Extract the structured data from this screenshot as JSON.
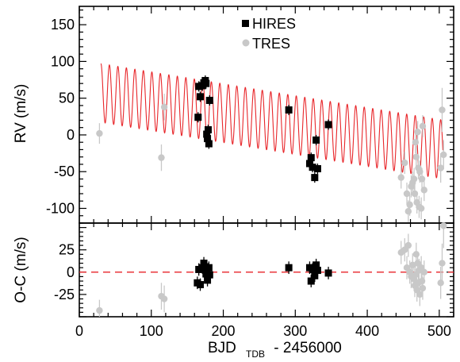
{
  "chart_data": [
    {
      "panel": "top",
      "type": "scatter",
      "ylabel": "RV (m/s)",
      "xlim": [
        0,
        520
      ],
      "ylim": [
        -120,
        175
      ],
      "yticks": [
        "150",
        "100",
        "50",
        "0",
        "-50",
        "-100"
      ],
      "yticks_values": [
        150,
        100,
        50,
        0,
        -50,
        -100
      ],
      "legend": {
        "position": "top-center",
        "entries": [
          "HIRES",
          "TRES"
        ]
      },
      "colors": {
        "hires": "#000000",
        "tres": "#c8c8c8",
        "model": "#e8262a"
      },
      "model": {
        "type": "sine-plus-trend",
        "period_days": 11.8,
        "amplitude": 40,
        "intercept": 62,
        "slope": -0.162,
        "x_range": [
          30,
          505
        ]
      },
      "series": [
        {
          "name": "HIRES",
          "marker": "square",
          "points": [
            {
              "x": 165,
              "y": 24,
              "err": 7
            },
            {
              "x": 166,
              "y": 66,
              "err": 7
            },
            {
              "x": 168,
              "y": 52,
              "err": 7
            },
            {
              "x": 171,
              "y": 67,
              "err": 7
            },
            {
              "x": 173,
              "y": 71,
              "err": 7
            },
            {
              "x": 175,
              "y": 74,
              "err": 7
            },
            {
              "x": 176,
              "y": 70,
              "err": 7
            },
            {
              "x": 177,
              "y": 1,
              "err": 7
            },
            {
              "x": 178,
              "y": -5,
              "err": 7
            },
            {
              "x": 179,
              "y": 7,
              "err": 7
            },
            {
              "x": 180,
              "y": -12,
              "err": 7
            },
            {
              "x": 181,
              "y": 47,
              "err": 7
            },
            {
              "x": 291,
              "y": 34,
              "err": 7
            },
            {
              "x": 320,
              "y": -39,
              "err": 7
            },
            {
              "x": 322,
              "y": -31,
              "err": 7
            },
            {
              "x": 324,
              "y": -44,
              "err": 7
            },
            {
              "x": 327,
              "y": -58,
              "err": 7
            },
            {
              "x": 329,
              "y": -7,
              "err": 7
            },
            {
              "x": 331,
              "y": -46,
              "err": 7
            },
            {
              "x": 346,
              "y": 14,
              "err": 7
            }
          ]
        },
        {
          "name": "TRES",
          "marker": "circle",
          "points": [
            {
              "x": 28,
              "y": 2,
              "err": 14
            },
            {
              "x": 114,
              "y": -31,
              "err": 18
            },
            {
              "x": 118,
              "y": 38,
              "err": 18
            },
            {
              "x": 447,
              "y": -58,
              "err": 15
            },
            {
              "x": 452,
              "y": -38,
              "err": 15
            },
            {
              "x": 455,
              "y": -80,
              "err": 15
            },
            {
              "x": 457,
              "y": -104,
              "err": 15
            },
            {
              "x": 459,
              "y": -95,
              "err": 15
            },
            {
              "x": 461,
              "y": -70,
              "err": 15
            },
            {
              "x": 463,
              "y": -65,
              "err": 15
            },
            {
              "x": 465,
              "y": -60,
              "err": 15
            },
            {
              "x": 466,
              "y": -80,
              "err": 15
            },
            {
              "x": 467,
              "y": -10,
              "err": 15
            },
            {
              "x": 468,
              "y": -30,
              "err": 15
            },
            {
              "x": 469,
              "y": -92,
              "err": 15
            },
            {
              "x": 470,
              "y": 4,
              "err": 15
            },
            {
              "x": 471,
              "y": -45,
              "err": 15
            },
            {
              "x": 472,
              "y": -98,
              "err": 15
            },
            {
              "x": 473,
              "y": -50,
              "err": 15
            },
            {
              "x": 475,
              "y": -100,
              "err": 15
            },
            {
              "x": 476,
              "y": -60,
              "err": 15
            },
            {
              "x": 477,
              "y": 12,
              "err": 15
            },
            {
              "x": 479,
              "y": -75,
              "err": 15
            },
            {
              "x": 502,
              "y": -45,
              "err": 20
            },
            {
              "x": 504,
              "y": 34,
              "err": 30
            },
            {
              "x": 506,
              "y": -27,
              "err": 20
            }
          ]
        }
      ]
    },
    {
      "panel": "bottom",
      "type": "scatter",
      "ylabel": "O-C (m/s)",
      "xlabel_main": "BJD",
      "xlabel_sub": "TDB",
      "xlabel_suffix": " - 2456000",
      "xlim": [
        0,
        520
      ],
      "ylim": [
        -50,
        55
      ],
      "yticks": [
        "25",
        "0",
        "-25"
      ],
      "yticks_values": [
        25,
        0,
        -25
      ],
      "xticks": [
        "0",
        "100",
        "200",
        "300",
        "400",
        "500"
      ],
      "xticks_values": [
        0,
        100,
        200,
        300,
        400,
        500
      ],
      "zero_line": {
        "y": 0,
        "color": "#e8262a",
        "style": "dashed"
      },
      "series": [
        {
          "name": "HIRES",
          "marker": "square",
          "points": [
            {
              "x": 164,
              "y": -12,
              "err": 7
            },
            {
              "x": 166,
              "y": 3,
              "err": 7
            },
            {
              "x": 168,
              "y": -14,
              "err": 7
            },
            {
              "x": 171,
              "y": 5,
              "err": 7
            },
            {
              "x": 173,
              "y": 10,
              "err": 7
            },
            {
              "x": 175,
              "y": 6,
              "err": 7
            },
            {
              "x": 176,
              "y": -2,
              "err": 7
            },
            {
              "x": 177,
              "y": 3,
              "err": 7
            },
            {
              "x": 178,
              "y": -9,
              "err": 7
            },
            {
              "x": 180,
              "y": 5,
              "err": 7
            },
            {
              "x": 181,
              "y": -3,
              "err": 7
            },
            {
              "x": 291,
              "y": 5,
              "err": 7
            },
            {
              "x": 320,
              "y": 5,
              "err": 7
            },
            {
              "x": 322,
              "y": -10,
              "err": 7
            },
            {
              "x": 324,
              "y": 3,
              "err": 7
            },
            {
              "x": 327,
              "y": -4,
              "err": 7
            },
            {
              "x": 329,
              "y": 8,
              "err": 7
            },
            {
              "x": 331,
              "y": 2,
              "err": 7
            },
            {
              "x": 346,
              "y": -1,
              "err": 7
            }
          ]
        },
        {
          "name": "TRES",
          "marker": "circle",
          "points": [
            {
              "x": 28,
              "y": -43,
              "err": 12
            },
            {
              "x": 114,
              "y": -27,
              "err": 15
            },
            {
              "x": 118,
              "y": -30,
              "err": 15
            },
            {
              "x": 447,
              "y": 22,
              "err": 13
            },
            {
              "x": 452,
              "y": 25,
              "err": 13
            },
            {
              "x": 455,
              "y": 5,
              "err": 13
            },
            {
              "x": 457,
              "y": 30,
              "err": 13
            },
            {
              "x": 459,
              "y": 0,
              "err": 13
            },
            {
              "x": 461,
              "y": -5,
              "err": 13
            },
            {
              "x": 463,
              "y": 8,
              "err": 13
            },
            {
              "x": 465,
              "y": -8,
              "err": 13
            },
            {
              "x": 466,
              "y": -15,
              "err": 13
            },
            {
              "x": 467,
              "y": -3,
              "err": 13
            },
            {
              "x": 468,
              "y": 20,
              "err": 13
            },
            {
              "x": 469,
              "y": -20,
              "err": 13
            },
            {
              "x": 470,
              "y": 10,
              "err": 13
            },
            {
              "x": 471,
              "y": -12,
              "err": 13
            },
            {
              "x": 472,
              "y": 2,
              "err": 13
            },
            {
              "x": 473,
              "y": -25,
              "err": 13
            },
            {
              "x": 475,
              "y": 5,
              "err": 13
            },
            {
              "x": 476,
              "y": -10,
              "err": 13
            },
            {
              "x": 477,
              "y": -18,
              "err": 13
            },
            {
              "x": 479,
              "y": 0,
              "err": 13
            },
            {
              "x": 502,
              "y": -12,
              "err": 18
            },
            {
              "x": 504,
              "y": 10,
              "err": 22
            },
            {
              "x": 506,
              "y": 52,
              "err": 25
            }
          ]
        }
      ]
    }
  ]
}
